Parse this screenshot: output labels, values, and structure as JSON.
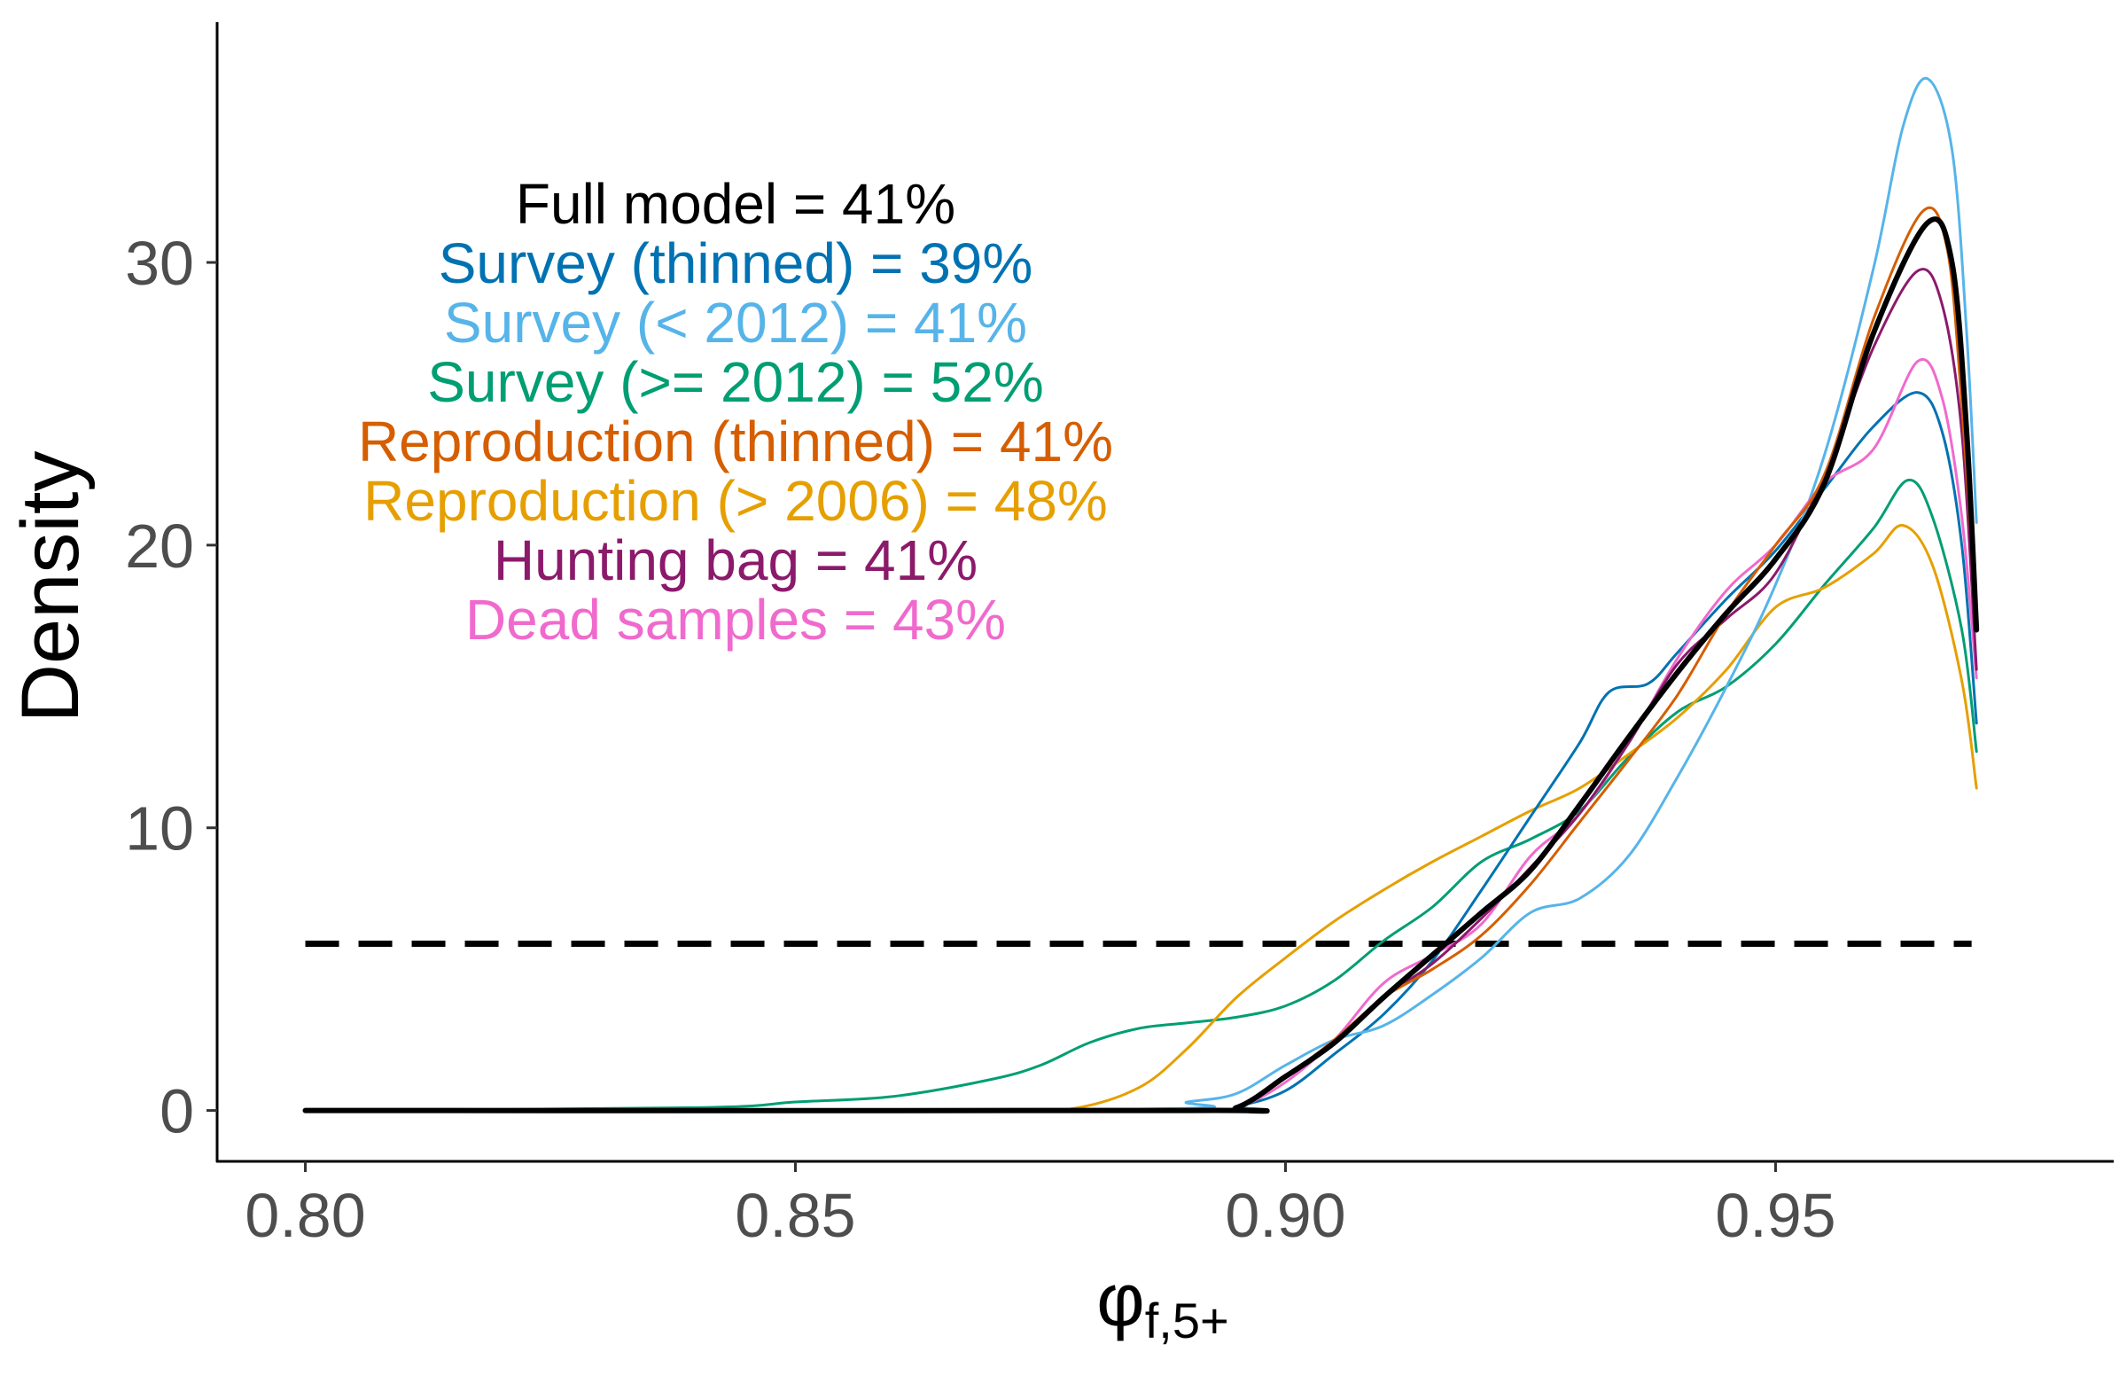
{
  "chart_data": {
    "type": "line",
    "ylabel": "Density",
    "xlabel": {
      "main": "φ",
      "subscript": "f,5+"
    },
    "xlim": [
      0.791,
      0.9845
    ],
    "ylim": [
      -1.8,
      38.5
    ],
    "x_ticks": [
      0.8,
      0.85,
      0.9,
      0.95
    ],
    "x_tick_labels": [
      "0.80",
      "0.85",
      "0.90",
      "0.95"
    ],
    "y_ticks": [
      0,
      10,
      20,
      30
    ],
    "y_tick_labels": [
      "0",
      "10",
      "20",
      "30"
    ],
    "grid": false,
    "legend": "none",
    "reference_line": {
      "style": "dashed",
      "y": 5.9,
      "x_range": [
        0.8,
        0.97
      ],
      "color": "#000000"
    },
    "annotations": [
      {
        "text": "Full model = 41%",
        "color": "#000000"
      },
      {
        "text": "Survey (thinned) = 39%",
        "color": "#0072B2"
      },
      {
        "text": "Survey (< 2012) = 41%",
        "color": "#56B4E9"
      },
      {
        "text": "Survey (>= 2012) = 52%",
        "color": "#009E73"
      },
      {
        "text": "Reproduction (thinned) = 41%",
        "color": "#D55E00"
      },
      {
        "text": "Reproduction (> 2006) = 48%",
        "color": "#E69F00"
      },
      {
        "text": "Hunting bag = 41%",
        "color": "#8B1A6B"
      },
      {
        "text": "Dead samples = 43%",
        "color": "#F06ACD"
      }
    ],
    "series": [
      {
        "color": "#009E73",
        "width": 3,
        "points": [
          [
            0.8,
            0
          ],
          [
            0.84,
            0.1
          ],
          [
            0.85,
            0.3
          ],
          [
            0.86,
            0.5
          ],
          [
            0.87,
            1.1
          ],
          [
            0.875,
            1.6
          ],
          [
            0.88,
            2.4
          ],
          [
            0.885,
            2.9
          ],
          [
            0.89,
            3.1
          ],
          [
            0.895,
            3.3
          ],
          [
            0.9,
            3.7
          ],
          [
            0.905,
            4.6
          ],
          [
            0.91,
            6.0
          ],
          [
            0.915,
            7.2
          ],
          [
            0.92,
            8.8
          ],
          [
            0.925,
            9.6
          ],
          [
            0.93,
            10.6
          ],
          [
            0.935,
            12.5
          ],
          [
            0.94,
            14.1
          ],
          [
            0.945,
            15.0
          ],
          [
            0.95,
            16.5
          ],
          [
            0.955,
            18.6
          ],
          [
            0.96,
            20.6
          ],
          [
            0.9635,
            22.3
          ],
          [
            0.966,
            21.0
          ],
          [
            0.969,
            17.0
          ],
          [
            0.9705,
            12.7
          ]
        ]
      },
      {
        "color": "#E69F00",
        "width": 3,
        "points": [
          [
            0.8,
            0
          ],
          [
            0.87,
            0
          ],
          [
            0.878,
            0.05
          ],
          [
            0.885,
            0.8
          ],
          [
            0.89,
            2.2
          ],
          [
            0.895,
            4.0
          ],
          [
            0.9,
            5.4
          ],
          [
            0.905,
            6.7
          ],
          [
            0.91,
            7.8
          ],
          [
            0.915,
            8.8
          ],
          [
            0.92,
            9.7
          ],
          [
            0.925,
            10.6
          ],
          [
            0.93,
            11.4
          ],
          [
            0.935,
            12.6
          ],
          [
            0.94,
            13.9
          ],
          [
            0.945,
            15.6
          ],
          [
            0.95,
            17.8
          ],
          [
            0.955,
            18.5
          ],
          [
            0.96,
            19.7
          ],
          [
            0.963,
            20.7
          ],
          [
            0.966,
            19.3
          ],
          [
            0.969,
            15.2
          ],
          [
            0.9705,
            11.4
          ]
        ]
      },
      {
        "color": "#0072B2",
        "width": 3,
        "points": [
          [
            0.8,
            0
          ],
          [
            0.89,
            0
          ],
          [
            0.895,
            0.15
          ],
          [
            0.9,
            0.7
          ],
          [
            0.905,
            2.0
          ],
          [
            0.91,
            3.4
          ],
          [
            0.915,
            5.3
          ],
          [
            0.92,
            7.8
          ],
          [
            0.925,
            10.4
          ],
          [
            0.93,
            13.0
          ],
          [
            0.933,
            14.8
          ],
          [
            0.937,
            15.1
          ],
          [
            0.94,
            16.2
          ],
          [
            0.945,
            18.1
          ],
          [
            0.95,
            19.8
          ],
          [
            0.955,
            22.0
          ],
          [
            0.96,
            24.2
          ],
          [
            0.9645,
            25.4
          ],
          [
            0.967,
            24.0
          ],
          [
            0.969,
            20.0
          ],
          [
            0.9705,
            13.7
          ]
        ]
      },
      {
        "color": "#56B4E9",
        "width": 3,
        "points": [
          [
            0.8,
            0
          ],
          [
            0.885,
            0.05
          ],
          [
            0.89,
            0.3
          ],
          [
            0.895,
            0.6
          ],
          [
            0.9,
            1.6
          ],
          [
            0.905,
            2.5
          ],
          [
            0.91,
            3.0
          ],
          [
            0.915,
            4.1
          ],
          [
            0.92,
            5.4
          ],
          [
            0.925,
            7.0
          ],
          [
            0.93,
            7.5
          ],
          [
            0.935,
            9.0
          ],
          [
            0.94,
            11.8
          ],
          [
            0.945,
            15.0
          ],
          [
            0.95,
            18.6
          ],
          [
            0.955,
            23.2
          ],
          [
            0.96,
            29.8
          ],
          [
            0.963,
            34.8
          ],
          [
            0.9655,
            36.5
          ],
          [
            0.968,
            34.0
          ],
          [
            0.9695,
            27.5
          ],
          [
            0.9705,
            20.8
          ]
        ]
      },
      {
        "color": "#F06ACD",
        "width": 3,
        "points": [
          [
            0.8,
            0
          ],
          [
            0.89,
            0
          ],
          [
            0.895,
            0.1
          ],
          [
            0.9,
            1.0
          ],
          [
            0.905,
            2.5
          ],
          [
            0.91,
            4.5
          ],
          [
            0.915,
            5.5
          ],
          [
            0.92,
            6.6
          ],
          [
            0.925,
            9.0
          ],
          [
            0.93,
            10.5
          ],
          [
            0.935,
            13.0
          ],
          [
            0.94,
            16.0
          ],
          [
            0.945,
            18.4
          ],
          [
            0.95,
            20.0
          ],
          [
            0.955,
            22.2
          ],
          [
            0.96,
            23.4
          ],
          [
            0.9645,
            26.5
          ],
          [
            0.967,
            25.2
          ],
          [
            0.969,
            21.0
          ],
          [
            0.9705,
            15.3
          ]
        ]
      },
      {
        "color": "#8B1A6B",
        "width": 3,
        "points": [
          [
            0.8,
            0
          ],
          [
            0.89,
            0
          ],
          [
            0.895,
            0.1
          ],
          [
            0.9,
            1.2
          ],
          [
            0.905,
            2.5
          ],
          [
            0.91,
            4.0
          ],
          [
            0.915,
            5.2
          ],
          [
            0.92,
            6.8
          ],
          [
            0.925,
            8.6
          ],
          [
            0.93,
            10.5
          ],
          [
            0.935,
            13.0
          ],
          [
            0.94,
            15.8
          ],
          [
            0.945,
            17.4
          ],
          [
            0.95,
            19.0
          ],
          [
            0.955,
            22.5
          ],
          [
            0.96,
            27.0
          ],
          [
            0.9645,
            29.7
          ],
          [
            0.967,
            28.5
          ],
          [
            0.969,
            24.0
          ],
          [
            0.9705,
            15.6
          ]
        ]
      },
      {
        "color": "#D55E00",
        "width": 3,
        "points": [
          [
            0.8,
            0
          ],
          [
            0.89,
            0
          ],
          [
            0.895,
            0.1
          ],
          [
            0.9,
            1.2
          ],
          [
            0.905,
            2.5
          ],
          [
            0.91,
            4.0
          ],
          [
            0.915,
            5.0
          ],
          [
            0.92,
            6.2
          ],
          [
            0.925,
            8.0
          ],
          [
            0.93,
            10.2
          ],
          [
            0.935,
            12.4
          ],
          [
            0.94,
            14.7
          ],
          [
            0.945,
            17.6
          ],
          [
            0.95,
            20.0
          ],
          [
            0.955,
            22.5
          ],
          [
            0.96,
            28.0
          ],
          [
            0.965,
            31.8
          ],
          [
            0.9675,
            30.5
          ],
          [
            0.969,
            25.0
          ],
          [
            0.9705,
            17.3
          ]
        ]
      },
      {
        "color": "#000000",
        "width": 6,
        "points": [
          [
            0.8,
            0
          ],
          [
            0.89,
            0
          ],
          [
            0.895,
            0.1
          ],
          [
            0.9,
            1.2
          ],
          [
            0.905,
            2.4
          ],
          [
            0.91,
            4.0
          ],
          [
            0.915,
            5.5
          ],
          [
            0.92,
            7.0
          ],
          [
            0.925,
            8.5
          ],
          [
            0.93,
            10.8
          ],
          [
            0.935,
            13.2
          ],
          [
            0.94,
            15.5
          ],
          [
            0.945,
            17.6
          ],
          [
            0.95,
            19.5
          ],
          [
            0.955,
            22.2
          ],
          [
            0.96,
            27.5
          ],
          [
            0.9655,
            31.4
          ],
          [
            0.968,
            30.0
          ],
          [
            0.9695,
            24.0
          ],
          [
            0.9705,
            17.0
          ]
        ]
      }
    ]
  }
}
